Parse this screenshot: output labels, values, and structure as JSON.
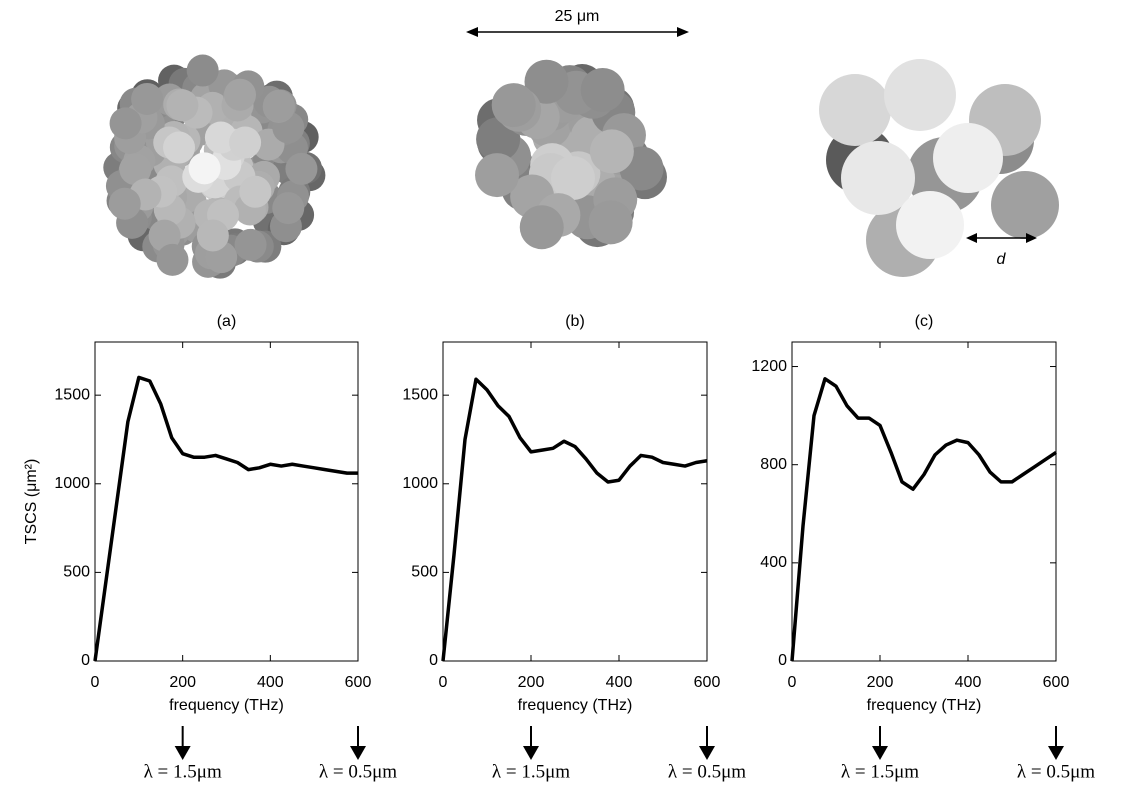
{
  "image_annotations": {
    "scale": "25 μm",
    "d": "d"
  },
  "chart_data": [
    {
      "type": "line",
      "title": "(a)",
      "ylabel": "TSCS (μm²)",
      "xlabel": "frequency (THz)",
      "x": [
        0,
        25,
        50,
        75,
        100,
        125,
        150,
        175,
        200,
        225,
        250,
        275,
        300,
        325,
        350,
        375,
        400,
        425,
        450,
        475,
        500,
        525,
        550,
        575,
        600
      ],
      "series": [
        {
          "color": "#000000",
          "values": [
            0,
            450,
            900,
            1350,
            1600,
            1580,
            1450,
            1260,
            1170,
            1150,
            1150,
            1160,
            1140,
            1120,
            1080,
            1090,
            1110,
            1100,
            1110,
            1100,
            1090,
            1080,
            1070,
            1060,
            1060
          ]
        }
      ],
      "xlim": [
        0,
        600
      ],
      "ylim": [
        0,
        1800
      ],
      "xticks": [
        0,
        200,
        400,
        600
      ],
      "yticks": [
        0,
        500,
        1000,
        1500
      ],
      "annotations": [
        {
          "x": 200,
          "label": "λ = 1.5μm"
        },
        {
          "x": 600,
          "label": "λ = 0.5μm"
        }
      ]
    },
    {
      "type": "line",
      "title": "(b)",
      "xlabel": "frequency (THz)",
      "x": [
        0,
        25,
        50,
        75,
        100,
        125,
        150,
        175,
        200,
        225,
        250,
        275,
        300,
        325,
        350,
        375,
        400,
        425,
        450,
        475,
        500,
        525,
        550,
        575,
        600
      ],
      "series": [
        {
          "color": "#000000",
          "values": [
            0,
            600,
            1250,
            1590,
            1530,
            1440,
            1380,
            1260,
            1180,
            1190,
            1200,
            1240,
            1210,
            1140,
            1060,
            1010,
            1020,
            1100,
            1160,
            1150,
            1120,
            1110,
            1100,
            1120,
            1130
          ]
        }
      ],
      "xlim": [
        0,
        600
      ],
      "ylim": [
        0,
        1800
      ],
      "xticks": [
        0,
        200,
        400,
        600
      ],
      "yticks": [
        0,
        500,
        1000,
        1500
      ],
      "annotations": [
        {
          "x": 200,
          "label": "λ = 1.5μm"
        },
        {
          "x": 600,
          "label": "λ = 0.5μm"
        }
      ]
    },
    {
      "type": "line",
      "title": "(c)",
      "xlabel": "frequency (THz)",
      "x": [
        0,
        25,
        50,
        75,
        100,
        125,
        150,
        175,
        200,
        225,
        250,
        275,
        300,
        325,
        350,
        375,
        400,
        425,
        450,
        475,
        500,
        525,
        550,
        575,
        600
      ],
      "series": [
        {
          "color": "#000000",
          "values": [
            0,
            550,
            1000,
            1150,
            1120,
            1040,
            990,
            990,
            960,
            850,
            730,
            700,
            760,
            840,
            880,
            900,
            890,
            840,
            770,
            730,
            730,
            760,
            790,
            820,
            850
          ]
        }
      ],
      "xlim": [
        0,
        600
      ],
      "ylim": [
        0,
        1300
      ],
      "xticks": [
        0,
        200,
        400,
        600
      ],
      "yticks": [
        0,
        400,
        800,
        1200
      ],
      "annotations": [
        {
          "x": 200,
          "label": "λ = 1.5μm"
        },
        {
          "x": 600,
          "label": "λ = 0.5μm"
        }
      ]
    }
  ]
}
